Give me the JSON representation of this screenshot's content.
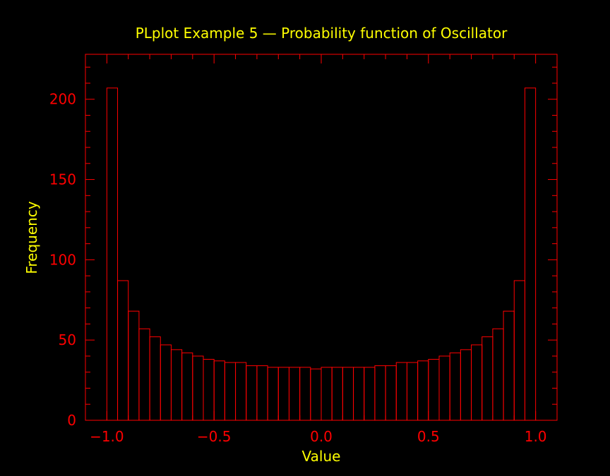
{
  "colors": {
    "background": "#000000",
    "frame": "#ff0000",
    "title_text": "#ffff00"
  },
  "chart_data": {
    "type": "bar",
    "title": "PLplot Example 5 — Probability function of Oscillator",
    "xlabel": "Value",
    "ylabel": "Frequency",
    "xlim": [
      -1.1,
      1.1
    ],
    "ylim": [
      0,
      228
    ],
    "x_tick_labels": [
      "−1.0",
      "−0.5",
      "0.0",
      "0.5",
      "1.0"
    ],
    "x_tick_values": [
      -1.0,
      -0.5,
      0.0,
      0.5,
      1.0
    ],
    "y_tick_labels": [
      "0",
      "50",
      "100",
      "150",
      "200"
    ],
    "y_tick_values": [
      0,
      50,
      100,
      150,
      200
    ],
    "bin_start": -1.0,
    "bin_width": 0.05,
    "values": [
      207,
      87,
      68,
      57,
      52,
      47,
      44,
      42,
      40,
      38,
      37,
      36,
      36,
      34,
      34,
      33,
      33,
      33,
      33,
      32,
      33,
      33,
      33,
      33,
      33,
      34,
      34,
      36,
      36,
      37,
      38,
      40,
      42,
      44,
      47,
      52,
      57,
      68,
      87,
      207
    ],
    "grid": false,
    "legend": "none"
  }
}
